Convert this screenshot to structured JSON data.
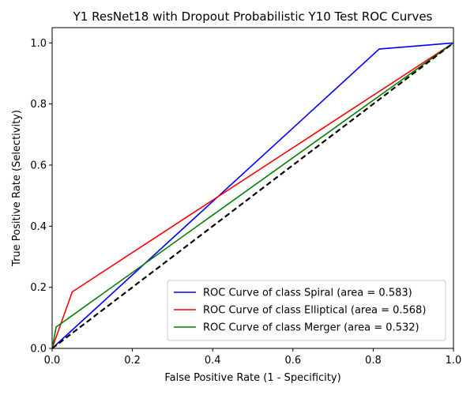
{
  "chart_data": {
    "type": "line",
    "title": "Y1 ResNet18 with Dropout Probabilistic Y10 Test ROC Curves",
    "xlabel": "False Positive Rate (1 - Specificity)",
    "ylabel": "True Positive Rate (Selectivity)",
    "xlim": [
      0.0,
      1.0
    ],
    "ylim": [
      0.0,
      1.05
    ],
    "xticks": [
      "0.0",
      "0.2",
      "0.4",
      "0.6",
      "0.8",
      "1.0"
    ],
    "yticks": [
      "0.0",
      "0.2",
      "0.4",
      "0.6",
      "0.8",
      "1.0"
    ],
    "grid": false,
    "legend_position": "bottom-right",
    "series": [
      {
        "name": "ROC Curve of class Spiral (area = 0.583)",
        "color": "#0000ff",
        "x": [
          0.0,
          0.815,
          1.0
        ],
        "y": [
          0.0,
          0.98,
          1.0
        ]
      },
      {
        "name": "ROC Curve of class Elliptical (area = 0.568)",
        "color": "#ff0000",
        "x": [
          0.0,
          0.05,
          1.0
        ],
        "y": [
          0.0,
          0.185,
          1.0
        ]
      },
      {
        "name": "ROC Curve of class Merger (area = 0.532)",
        "color": "#008000",
        "x": [
          0.0,
          0.01,
          1.0
        ],
        "y": [
          0.0,
          0.07,
          1.0
        ]
      }
    ],
    "reference_line": {
      "color": "#000000",
      "style": "dashed",
      "x": [
        0.0,
        1.0
      ],
      "y": [
        0.0,
        1.0
      ]
    }
  }
}
